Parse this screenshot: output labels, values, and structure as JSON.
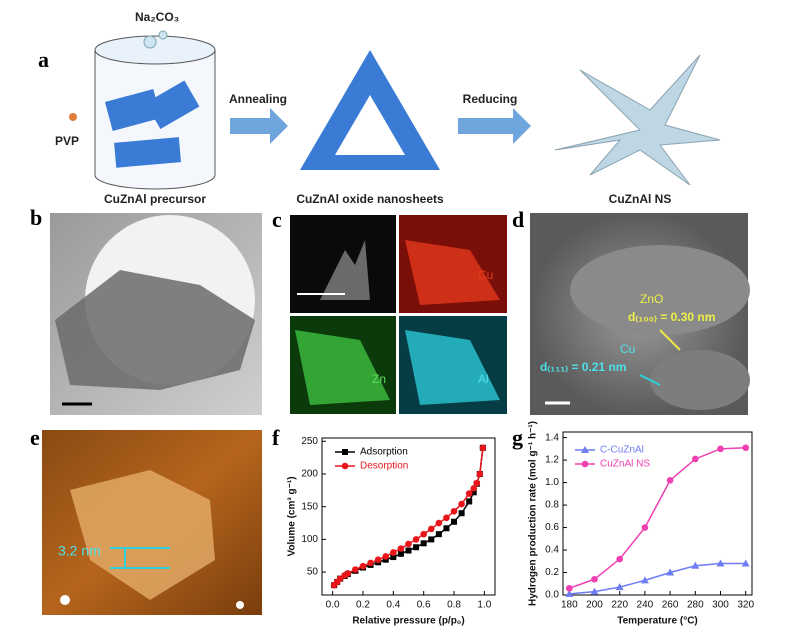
{
  "panel_labels": [
    "a",
    "b",
    "c",
    "d",
    "e",
    "f",
    "g"
  ],
  "scheme": {
    "reagent": "Na₂CO₃",
    "surfactant": "PVP",
    "step1_label": "CuZnAl precursor",
    "arrow1": "Annealing",
    "step2_label": "CuZnAl oxide nanosheets",
    "arrow2": "Reducing",
    "step3_label": "CuZnAl NS"
  },
  "mapping": {
    "labels": [
      "Cu",
      "Zn",
      "Al"
    ]
  },
  "hrtem": {
    "phase1": "ZnO",
    "spacing1": "d₍₁₀₀₎ = 0.30 nm",
    "phase2": "Cu",
    "spacing2": "d₍₁₁₁₎ = 0.21 nm"
  },
  "afm": {
    "height": "3.2 nm"
  },
  "chart_data": [
    {
      "type": "line",
      "xlabel": "Relative pressure (p/p₀)",
      "ylabel": "Volume (cm³ g⁻¹)",
      "x": [
        0.01,
        0.03,
        0.05,
        0.08,
        0.1,
        0.15,
        0.2,
        0.25,
        0.3,
        0.35,
        0.4,
        0.45,
        0.5,
        0.55,
        0.6,
        0.65,
        0.7,
        0.75,
        0.8,
        0.85,
        0.9,
        0.93,
        0.95,
        0.97,
        0.99
      ],
      "series": [
        {
          "name": "Adsorption",
          "color": "#000000",
          "marker": "square",
          "values": [
            30,
            35,
            40,
            44,
            47,
            52,
            57,
            61,
            65,
            69,
            73,
            78,
            83,
            88,
            94,
            100,
            108,
            117,
            127,
            140,
            158,
            172,
            185,
            200,
            240
          ]
        },
        {
          "name": "Desorption",
          "color": "#e8161b",
          "marker": "circle",
          "values": [
            30,
            35,
            40,
            45,
            48,
            54,
            59,
            64,
            69,
            74,
            80,
            86,
            93,
            100,
            108,
            116,
            125,
            133,
            143,
            154,
            170,
            178,
            186,
            200,
            240
          ]
        }
      ],
      "xlim": [
        -0.07,
        1.07
      ],
      "xticks": [
        {
          "value": 0,
          "label": "0.0"
        },
        0.2,
        0.4,
        0.6,
        0.8,
        {
          "value": 1,
          "label": "1.0"
        }
      ],
      "ylim": [
        15,
        255
      ],
      "yticks": [
        50,
        100,
        150,
        200,
        250
      ]
    },
    {
      "type": "line",
      "xlabel": "Temperature (°C)",
      "ylabel": "Hydrogen production rate (mol g⁻¹ h⁻¹)",
      "x": [
        180,
        200,
        220,
        240,
        260,
        280,
        300,
        320
      ],
      "series": [
        {
          "name": "C-CuZnAl",
          "color": "#6f7df5",
          "marker": "triangle",
          "values": [
            0.01,
            0.03,
            0.07,
            0.13,
            0.2,
            0.26,
            0.28,
            0.28
          ]
        },
        {
          "name": "CuZnAl NS",
          "color": "#f03fb0",
          "marker": "circle",
          "values": [
            0.06,
            0.14,
            0.32,
            0.6,
            1.02,
            1.21,
            1.3,
            1.31
          ]
        }
      ],
      "xlim": [
        175,
        325
      ],
      "xticks": [
        180,
        200,
        220,
        240,
        260,
        280,
        300,
        320
      ],
      "ylim": [
        0,
        1.45
      ],
      "yticks": [
        {
          "value": 0,
          "label": "0.0"
        },
        0.2,
        0.4,
        0.6,
        0.8,
        {
          "value": 1,
          "label": "1.0"
        },
        1.2,
        1.4
      ]
    }
  ]
}
